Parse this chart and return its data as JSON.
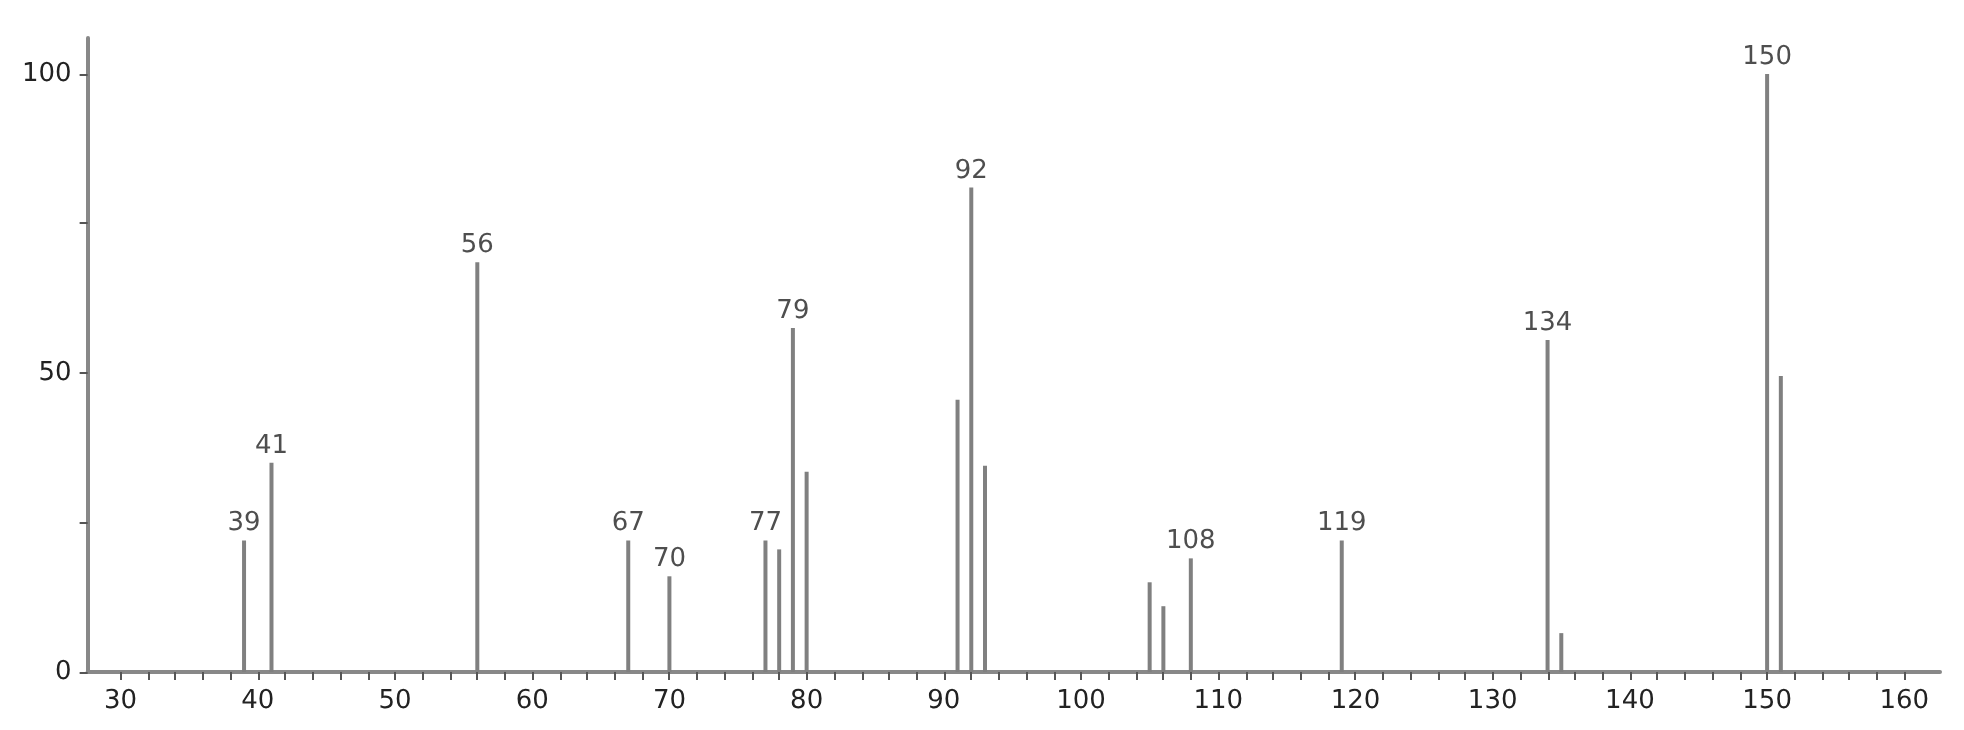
{
  "chart_data": {
    "type": "bar",
    "x": [
      39,
      41,
      56,
      67,
      70,
      77,
      78,
      79,
      80,
      91,
      92,
      93,
      105,
      106,
      108,
      119,
      134,
      135,
      150,
      151
    ],
    "values": [
      22,
      35,
      68.5,
      22,
      16,
      22,
      20.5,
      57.5,
      33.5,
      45.5,
      81,
      34.5,
      15,
      11,
      19,
      22,
      55.5,
      6.5,
      100,
      49.5
    ],
    "annotations": [
      {
        "text": "39",
        "x": 39,
        "y": 22
      },
      {
        "text": "41",
        "x": 41,
        "y": 35
      },
      {
        "text": "56",
        "x": 56,
        "y": 68.5
      },
      {
        "text": "67",
        "x": 67,
        "y": 22
      },
      {
        "text": "70",
        "x": 70,
        "y": 16
      },
      {
        "text": "77",
        "x": 77,
        "y": 22
      },
      {
        "text": "79",
        "x": 79,
        "y": 57.5
      },
      {
        "text": "92",
        "x": 92,
        "y": 81
      },
      {
        "text": "108",
        "x": 108,
        "y": 19
      },
      {
        "text": "119",
        "x": 119,
        "y": 22
      },
      {
        "text": "134",
        "x": 134,
        "y": 55.5
      },
      {
        "text": "150",
        "x": 150,
        "y": 100
      }
    ],
    "color": "#808080",
    "xlim": [
      27.6,
      162.6
    ],
    "ylim": [
      0,
      106
    ],
    "xticks": [
      30,
      {
        "value": 32,
        "label": null
      },
      {
        "value": 34,
        "label": null
      },
      {
        "value": 36,
        "label": null
      },
      {
        "value": 38,
        "label": null
      },
      40,
      {
        "value": 42,
        "label": null
      },
      {
        "value": 44,
        "label": null
      },
      {
        "value": 46,
        "label": null
      },
      {
        "value": 48,
        "label": null
      },
      50,
      {
        "value": 52,
        "label": null
      },
      {
        "value": 54,
        "label": null
      },
      {
        "value": 56,
        "label": null
      },
      {
        "value": 58,
        "label": null
      },
      60,
      {
        "value": 62,
        "label": null
      },
      {
        "value": 64,
        "label": null
      },
      {
        "value": 66,
        "label": null
      },
      {
        "value": 68,
        "label": null
      },
      70,
      {
        "value": 72,
        "label": null
      },
      {
        "value": 74,
        "label": null
      },
      {
        "value": 76,
        "label": null
      },
      {
        "value": 78,
        "label": null
      },
      80,
      {
        "value": 82,
        "label": null
      },
      {
        "value": 84,
        "label": null
      },
      {
        "value": 86,
        "label": null
      },
      {
        "value": 88,
        "label": null
      },
      90,
      {
        "value": 92,
        "label": null
      },
      {
        "value": 94,
        "label": null
      },
      {
        "value": 96,
        "label": null
      },
      {
        "value": 98,
        "label": null
      },
      100,
      {
        "value": 102,
        "label": null
      },
      {
        "value": 104,
        "label": null
      },
      {
        "value": 106,
        "label": null
      },
      {
        "value": 108,
        "label": null
      },
      110,
      {
        "value": 112,
        "label": null
      },
      {
        "value": 114,
        "label": null
      },
      {
        "value": 116,
        "label": null
      },
      {
        "value": 118,
        "label": null
      },
      120,
      {
        "value": 122,
        "label": null
      },
      {
        "value": 124,
        "label": null
      },
      {
        "value": 126,
        "label": null
      },
      {
        "value": 128,
        "label": null
      },
      130,
      {
        "value": 132,
        "label": null
      },
      {
        "value": 134,
        "label": null
      },
      {
        "value": 136,
        "label": null
      },
      {
        "value": 138,
        "label": null
      },
      140,
      {
        "value": 142,
        "label": null
      },
      {
        "value": 144,
        "label": null
      },
      {
        "value": 146,
        "label": null
      },
      {
        "value": 148,
        "label": null
      },
      150,
      {
        "value": 152,
        "label": null
      },
      {
        "value": 154,
        "label": null
      },
      {
        "value": 156,
        "label": null
      },
      {
        "value": 158,
        "label": null
      },
      160
    ],
    "yticks": [
      0,
      {
        "value": 25,
        "label": null
      },
      50,
      {
        "value": 75,
        "label": null
      },
      100
    ],
    "grid": false
  }
}
